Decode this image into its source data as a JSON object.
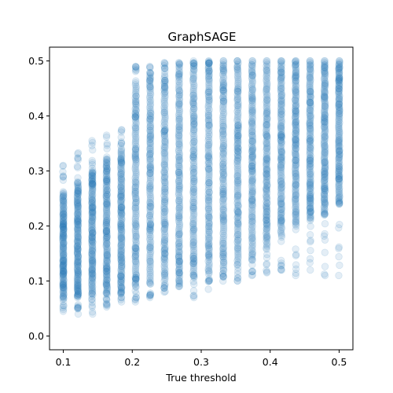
{
  "chart_data": {
    "type": "scatter",
    "title": "GraphSAGE",
    "xlabel": "True threshold",
    "ylabel": "",
    "xlim": [
      0.08,
      0.52
    ],
    "ylim": [
      -0.025,
      0.525
    ],
    "xticks": [
      0.1,
      0.2,
      0.3,
      0.4,
      0.5
    ],
    "xtick_labels": [
      "0.1",
      "0.2",
      "0.3",
      "0.4",
      "0.5"
    ],
    "yticks": [
      0.0,
      0.1,
      0.2,
      0.3,
      0.4,
      0.5
    ],
    "ytick_labels": [
      "0.0",
      "0.1",
      "0.2",
      "0.3",
      "0.4",
      "0.5"
    ],
    "grid": false,
    "marker_color": "#1f77b4",
    "marker_alpha": 0.12,
    "columns": [
      {
        "x": 0.1,
        "core": [
          0.07,
          0.26
        ],
        "range": [
          0.045,
          0.31
        ]
      },
      {
        "x": 0.121,
        "core": [
          0.07,
          0.28
        ],
        "range": [
          0.04,
          0.333
        ]
      },
      {
        "x": 0.142,
        "core": [
          0.075,
          0.3
        ],
        "range": [
          0.04,
          0.355
        ]
      },
      {
        "x": 0.163,
        "core": [
          0.075,
          0.32
        ],
        "range": [
          0.053,
          0.365
        ]
      },
      {
        "x": 0.184,
        "core": [
          0.08,
          0.34
        ],
        "range": [
          0.062,
          0.375
        ]
      },
      {
        "x": 0.205,
        "core": [
          0.09,
          0.46
        ],
        "range": [
          0.062,
          0.49
        ]
      },
      {
        "x": 0.226,
        "core": [
          0.095,
          0.47
        ],
        "range": [
          0.07,
          0.49
        ]
      },
      {
        "x": 0.247,
        "core": [
          0.1,
          0.475
        ],
        "range": [
          0.08,
          0.497
        ]
      },
      {
        "x": 0.268,
        "core": [
          0.105,
          0.48
        ],
        "range": [
          0.09,
          0.497
        ]
      },
      {
        "x": 0.289,
        "core": [
          0.11,
          0.49
        ],
        "range": [
          0.07,
          0.5
        ]
      },
      {
        "x": 0.311,
        "core": [
          0.115,
          0.495
        ],
        "range": [
          0.085,
          0.5
        ]
      },
      {
        "x": 0.332,
        "core": [
          0.12,
          0.5
        ],
        "range": [
          0.1,
          0.5
        ]
      },
      {
        "x": 0.353,
        "core": [
          0.13,
          0.5
        ],
        "range": [
          0.1,
          0.5
        ]
      },
      {
        "x": 0.374,
        "core": [
          0.14,
          0.5
        ],
        "range": [
          0.11,
          0.5
        ]
      },
      {
        "x": 0.395,
        "core": [
          0.16,
          0.5
        ],
        "range": [
          0.115,
          0.5
        ]
      },
      {
        "x": 0.416,
        "core": [
          0.18,
          0.5
        ],
        "range": [
          0.12,
          0.5
        ]
      },
      {
        "x": 0.437,
        "core": [
          0.2,
          0.5
        ],
        "range": [
          0.11,
          0.5
        ]
      },
      {
        "x": 0.458,
        "core": [
          0.21,
          0.5
        ],
        "range": [
          0.12,
          0.5
        ]
      },
      {
        "x": 0.479,
        "core": [
          0.22,
          0.5
        ],
        "range": [
          0.11,
          0.5
        ]
      },
      {
        "x": 0.5,
        "core": [
          0.24,
          0.5
        ],
        "range": [
          0.11,
          0.5
        ]
      }
    ]
  }
}
